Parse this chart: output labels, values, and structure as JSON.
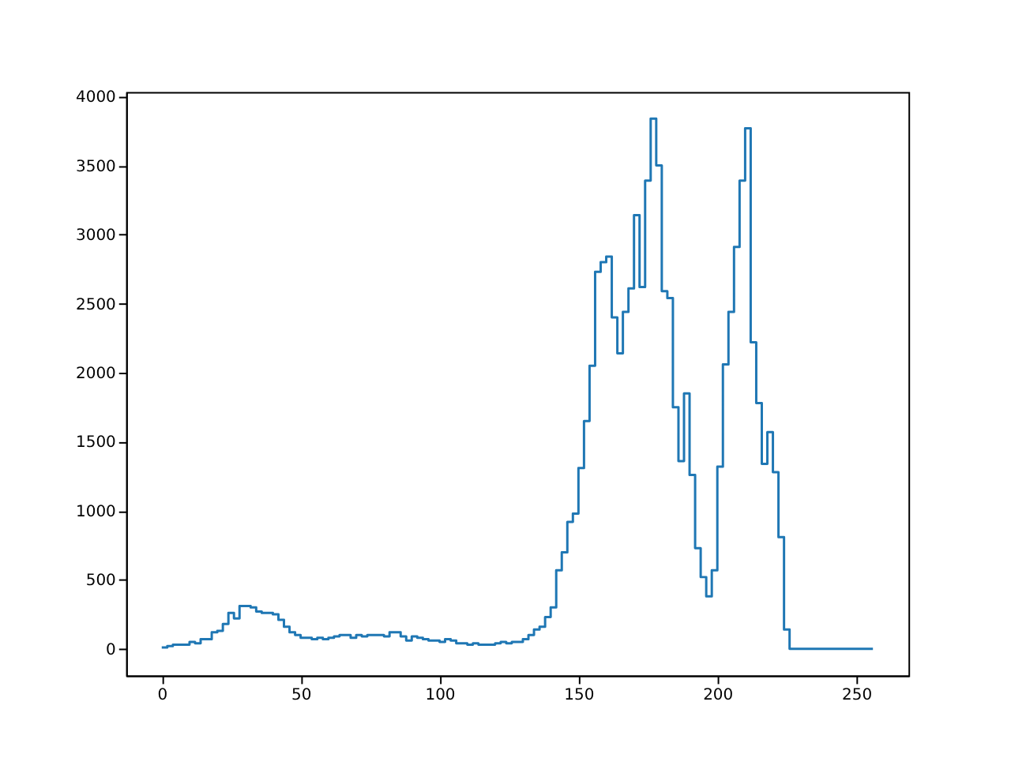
{
  "chart_data": {
    "type": "step",
    "xlim": [
      -12.8,
      268.8
    ],
    "ylim": [
      -192,
      4032
    ],
    "xticks": [
      0,
      50,
      100,
      150,
      200,
      250
    ],
    "yticks": [
      0,
      500,
      1000,
      1500,
      2000,
      2500,
      3000,
      3500,
      4000
    ],
    "grid": false,
    "x": [
      0,
      2,
      4,
      6,
      8,
      10,
      12,
      14,
      16,
      18,
      20,
      22,
      24,
      26,
      28,
      30,
      32,
      34,
      36,
      38,
      40,
      42,
      44,
      46,
      48,
      50,
      52,
      54,
      56,
      58,
      60,
      62,
      64,
      66,
      68,
      70,
      72,
      74,
      76,
      78,
      80,
      82,
      84,
      86,
      88,
      90,
      92,
      94,
      96,
      98,
      100,
      102,
      104,
      106,
      108,
      110,
      112,
      114,
      116,
      118,
      120,
      122,
      124,
      126,
      128,
      130,
      132,
      134,
      136,
      138,
      140,
      142,
      144,
      146,
      148,
      150,
      152,
      154,
      156,
      158,
      160,
      162,
      164,
      166,
      168,
      170,
      172,
      174,
      176,
      178,
      180,
      182,
      184,
      186,
      188,
      190,
      192,
      194,
      196,
      198,
      200,
      202,
      204,
      206,
      208,
      210,
      212,
      214,
      216,
      218,
      220,
      222,
      224,
      226,
      256
    ],
    "series": [
      {
        "color": "#1f77b4",
        "values": [
          10,
          20,
          30,
          30,
          30,
          50,
          40,
          70,
          70,
          120,
          130,
          180,
          260,
          220,
          310,
          310,
          300,
          270,
          260,
          260,
          250,
          210,
          160,
          120,
          100,
          80,
          80,
          70,
          80,
          70,
          80,
          90,
          100,
          100,
          80,
          100,
          90,
          100,
          100,
          100,
          90,
          120,
          120,
          90,
          60,
          90,
          80,
          70,
          60,
          60,
          50,
          70,
          60,
          40,
          40,
          30,
          40,
          30,
          30,
          30,
          40,
          50,
          40,
          50,
          50,
          70,
          100,
          140,
          160,
          230,
          300,
          570,
          700,
          920,
          980,
          1310,
          1650,
          2050,
          2730,
          2800,
          2840,
          2400,
          2140,
          2440,
          2610,
          3140,
          2620,
          3390,
          3840,
          3500,
          2590,
          2540,
          1750,
          1360,
          1850,
          1260,
          730,
          520,
          380,
          570,
          1320,
          2060,
          2440,
          2910,
          3390,
          3770,
          2220,
          1780,
          1340,
          1570,
          1280,
          810,
          140,
          0,
          0
        ]
      }
    ]
  }
}
